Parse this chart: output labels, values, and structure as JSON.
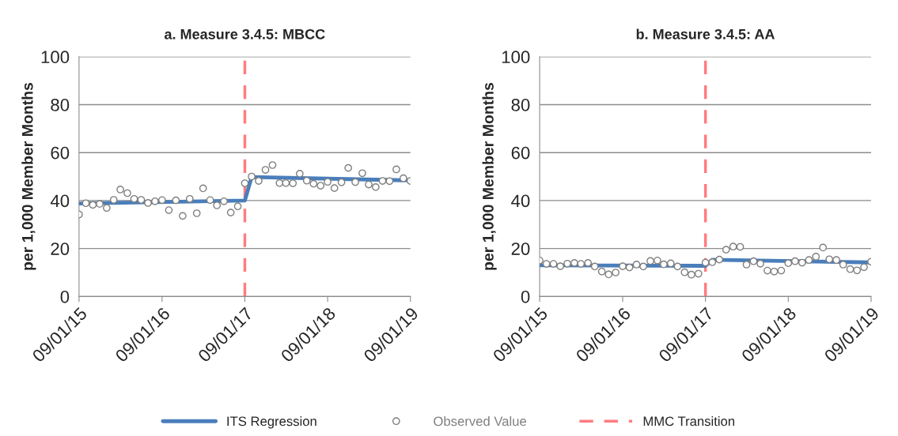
{
  "chart_data": [
    {
      "type": "scatter",
      "title": "a. Measure 3.4.5: MBCC",
      "ylabel": "per 1,000 Member Months",
      "xlim": [
        "2015-09-01",
        "2019-09-01"
      ],
      "xticks": [
        {
          "value": "2015-09-01",
          "label": "09/01/15"
        },
        {
          "value": "2016-09-01",
          "label": "09/01/16"
        },
        {
          "value": "2017-09-01",
          "label": "09/01/17"
        },
        {
          "value": "2018-09-01",
          "label": "09/01/18"
        },
        {
          "value": "2019-09-01",
          "label": "09/01/19"
        }
      ],
      "ylim": [
        0,
        100
      ],
      "yticks": [
        0,
        20,
        40,
        60,
        80,
        100
      ],
      "grid": "y",
      "legend": "bottom",
      "ref_lines": [
        {
          "axis": "x",
          "value": "2017-09-01",
          "label": "MMC Transition",
          "color": "#ff7c80",
          "line_style": "dashed"
        }
      ],
      "series": [
        {
          "name": "ITS Regression",
          "type": "line",
          "color": "#4a7ebb",
          "marker": "none",
          "x": [
            "2015-09-01",
            "2017-09-01",
            "2017-10-01",
            "2019-09-01"
          ],
          "values": [
            38.8,
            40.0,
            49.8,
            48.4
          ]
        },
        {
          "name": "Observed Value",
          "color": "#7f7f7f",
          "marker": "circle",
          "x": [
            "2015-09",
            "2015-10",
            "2015-11",
            "2015-12",
            "2016-01",
            "2016-02",
            "2016-03",
            "2016-04",
            "2016-05",
            "2016-06",
            "2016-07",
            "2016-08",
            "2016-09",
            "2016-10",
            "2016-11",
            "2016-12",
            "2017-01",
            "2017-02",
            "2017-03",
            "2017-04",
            "2017-05",
            "2017-06",
            "2017-07",
            "2017-08",
            "2017-09",
            "2017-10",
            "2017-11",
            "2017-12",
            "2018-01",
            "2018-02",
            "2018-03",
            "2018-04",
            "2018-05",
            "2018-06",
            "2018-07",
            "2018-08",
            "2018-09",
            "2018-10",
            "2018-11",
            "2018-12",
            "2019-01",
            "2019-02",
            "2019-03",
            "2019-04",
            "2019-05",
            "2019-06",
            "2019-07",
            "2019-08",
            "2019-09"
          ],
          "values": [
            34.2,
            38.9,
            38.2,
            38.6,
            36.9,
            40.3,
            44.6,
            43.1,
            40.7,
            40.3,
            39.0,
            39.7,
            40.2,
            36.0,
            40.1,
            33.6,
            40.7,
            34.7,
            45.1,
            40.2,
            38.0,
            39.7,
            35.0,
            37.6,
            47.2,
            50.0,
            48.2,
            52.8,
            54.8,
            47.3,
            47.3,
            47.2,
            51.2,
            48.3,
            47.0,
            46.2,
            47.8,
            45.2,
            47.6,
            53.6,
            47.7,
            51.4,
            46.7,
            45.6,
            48.2,
            48.1,
            53.0,
            49.3,
            48.2
          ]
        }
      ]
    },
    {
      "type": "scatter",
      "title": "b. Measure 3.4.5: AA",
      "ylabel": "per 1,000 Member Months",
      "xlim": [
        "2015-09-01",
        "2019-09-01"
      ],
      "xticks": [
        {
          "value": "2015-09-01",
          "label": "09/01/15"
        },
        {
          "value": "2016-09-01",
          "label": "09/01/16"
        },
        {
          "value": "2017-09-01",
          "label": "09/01/17"
        },
        {
          "value": "2018-09-01",
          "label": "09/01/18"
        },
        {
          "value": "2019-09-01",
          "label": "09/01/19"
        }
      ],
      "ylim": [
        0,
        100
      ],
      "yticks": [
        0,
        20,
        40,
        60,
        80,
        100
      ],
      "grid": "y",
      "ref_lines": [
        {
          "axis": "x",
          "value": "2017-09-01",
          "color": "#ff7c80",
          "line_style": "dashed"
        }
      ],
      "series": [
        {
          "type": "line",
          "color": "#4a7ebb",
          "marker": "none",
          "x": [
            "2015-09-01",
            "2017-09-01",
            "2017-10-01",
            "2019-09-01"
          ],
          "values": [
            13.0,
            12.8,
            15.3,
            14.2
          ]
        },
        {
          "color": "#7f7f7f",
          "marker": "circle",
          "x": [
            "2015-09",
            "2015-10",
            "2015-11",
            "2015-12",
            "2016-01",
            "2016-02",
            "2016-03",
            "2016-04",
            "2016-05",
            "2016-06",
            "2016-07",
            "2016-08",
            "2016-09",
            "2016-10",
            "2016-11",
            "2016-12",
            "2017-01",
            "2017-02",
            "2017-03",
            "2017-04",
            "2017-05",
            "2017-06",
            "2017-07",
            "2017-08",
            "2017-09",
            "2017-10",
            "2017-11",
            "2017-12",
            "2018-01",
            "2018-02",
            "2018-03",
            "2018-04",
            "2018-05",
            "2018-06",
            "2018-07",
            "2018-08",
            "2018-09",
            "2018-10",
            "2018-11",
            "2018-12",
            "2019-01",
            "2019-02",
            "2019-03",
            "2019-04",
            "2019-05",
            "2019-06",
            "2019-07",
            "2019-08",
            "2019-09"
          ],
          "values": [
            15.0,
            13.6,
            13.6,
            12.6,
            13.7,
            14.0,
            13.6,
            14.0,
            12.5,
            10.4,
            9.2,
            10.0,
            12.6,
            12.1,
            13.3,
            12.5,
            14.8,
            15.0,
            13.4,
            13.8,
            12.5,
            10.1,
            9.1,
            9.5,
            14.1,
            14.3,
            15.4,
            19.5,
            20.8,
            20.7,
            13.3,
            14.7,
            13.7,
            10.8,
            10.4,
            10.8,
            13.9,
            14.7,
            14.1,
            15.2,
            16.6,
            20.4,
            15.5,
            15.2,
            13.3,
            11.4,
            10.9,
            12.2,
            14.5
          ]
        }
      ]
    }
  ]
}
